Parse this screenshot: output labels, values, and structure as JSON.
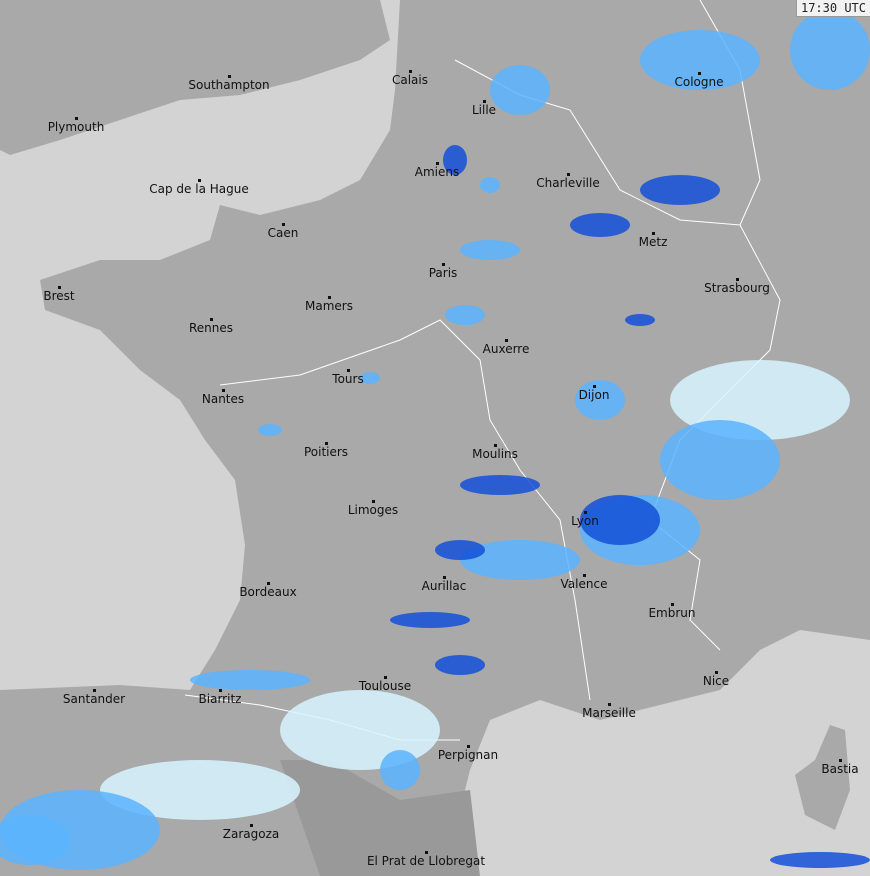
{
  "timestamp": "17:30 UTC",
  "colors": {
    "sea": "#d3d3d3",
    "land": "#a9a9a9",
    "land_dark": "#8c8c8c",
    "border": "#ffffff",
    "rain_light": "#d8f4ff",
    "rain_mid": "#5ab4ff",
    "rain_heavy": "#1450d8"
  },
  "cities": [
    {
      "name": "Southampton"
    },
    {
      "name": "Calais"
    },
    {
      "name": "Lille"
    },
    {
      "name": "Cologne"
    },
    {
      "name": "Plymouth"
    },
    {
      "name": "Amiens"
    },
    {
      "name": "Charleville"
    },
    {
      "name": "Cap de la Hague"
    },
    {
      "name": "Caen"
    },
    {
      "name": "Metz"
    },
    {
      "name": "Paris"
    },
    {
      "name": "Brest"
    },
    {
      "name": "Strasbourg"
    },
    {
      "name": "Mamers"
    },
    {
      "name": "Rennes"
    },
    {
      "name": "Auxerre"
    },
    {
      "name": "Tours"
    },
    {
      "name": "Dijon"
    },
    {
      "name": "Nantes"
    },
    {
      "name": "Poitiers"
    },
    {
      "name": "Moulins"
    },
    {
      "name": "Limoges"
    },
    {
      "name": "Lyon"
    },
    {
      "name": "Valence"
    },
    {
      "name": "Aurillac"
    },
    {
      "name": "Bordeaux"
    },
    {
      "name": "Embrun"
    },
    {
      "name": "Nice"
    },
    {
      "name": "Toulouse"
    },
    {
      "name": "Santander"
    },
    {
      "name": "Biarritz"
    },
    {
      "name": "Marseille"
    },
    {
      "name": "Perpignan"
    },
    {
      "name": "Bastia"
    },
    {
      "name": "Zaragoza"
    },
    {
      "name": "El Prat de Llobregat"
    }
  ]
}
